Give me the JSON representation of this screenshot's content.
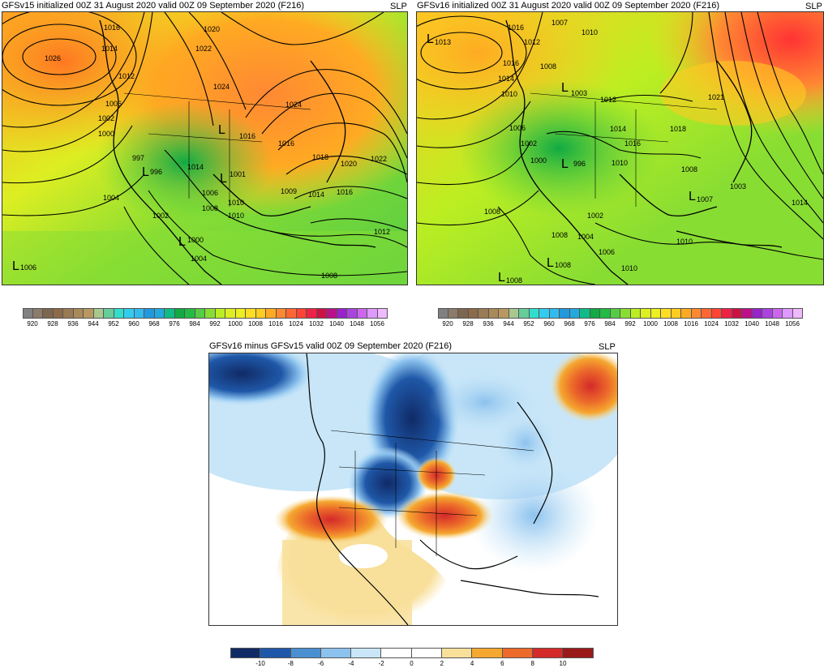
{
  "panel_left": {
    "title": "GFSv15 initialized 00Z 31 August 2020 valid 00Z 09 September 2020 (F216)",
    "variable": "SLP",
    "isobar_labels": [
      "1026",
      "1016",
      "1014",
      "1012",
      "1020",
      "1022",
      "1024",
      "1006",
      "1002",
      "1000",
      "997",
      "996",
      "1014",
      "1001",
      "1006",
      "1008",
      "1010",
      "1004",
      "1002",
      "1000",
      "1004",
      "1016",
      "1016",
      "1018",
      "1020",
      "1022",
      "1024",
      "1009",
      "1014",
      "1016",
      "1012",
      "1008",
      "1010"
    ],
    "low_labels": [
      "1006"
    ]
  },
  "panel_right": {
    "title": "GFSv16 initialized 00Z 31 August 2020 valid 00Z 09 September 2020 (F216)",
    "variable": "SLP",
    "isobar_labels": [
      "1013",
      "1016",
      "1012",
      "1007",
      "1010",
      "1008",
      "1016",
      "1014",
      "1010",
      "1003",
      "1012",
      "1006",
      "1002",
      "1000",
      "996",
      "1010",
      "1014",
      "1016",
      "1018",
      "1021",
      "1003",
      "1014",
      "1008",
      "1008",
      "1002",
      "1004",
      "1006",
      "1010",
      "1008",
      "1010",
      "1007"
    ],
    "low_labels": [
      "1013",
      "1007",
      "1008",
      "1008"
    ]
  },
  "panel_diff": {
    "title": "GFSv16 minus GFSv15 valid 00Z 09 September 2020 (F216)",
    "variable": "SLP"
  },
  "slp_colorbar": {
    "tick_labels": [
      "920",
      "928",
      "936",
      "944",
      "952",
      "960",
      "968",
      "976",
      "984",
      "992",
      "1000",
      "1008",
      "1016",
      "1024",
      "1032",
      "1040",
      "1048",
      "1056"
    ],
    "colors": [
      "#808080",
      "#8c7b6b",
      "#7d6650",
      "#8b6b4a",
      "#9a7a55",
      "#a88a5a",
      "#b89860",
      "#a8c890",
      "#66cc99",
      "#33ddcc",
      "#33ccee",
      "#33bbee",
      "#2299dd",
      "#22aadd",
      "#11bb88",
      "#11aa44",
      "#22bb44",
      "#55cc44",
      "#88dd33",
      "#bbee22",
      "#ddee22",
      "#eeee22",
      "#ffdd22",
      "#ffcc22",
      "#ffaa22",
      "#ff8833",
      "#ff6633",
      "#ff4433",
      "#ee2244",
      "#cc1144",
      "#bb1188",
      "#9922cc",
      "#aa44dd",
      "#cc66ee",
      "#dd99ff",
      "#f0b8ff"
    ]
  },
  "diff_colorbar": {
    "tick_labels": [
      "-10",
      "-8",
      "-6",
      "-4",
      "-2",
      "0",
      "2",
      "4",
      "6",
      "8",
      "10"
    ],
    "colors": [
      "#102a66",
      "#1f58a8",
      "#4a8fd0",
      "#8cc2ee",
      "#c8e6f8",
      "#ffffff",
      "#ffffff",
      "#f8df9a",
      "#f5a830",
      "#ec6a2a",
      "#d42a2a",
      "#9a1a1a"
    ]
  }
}
